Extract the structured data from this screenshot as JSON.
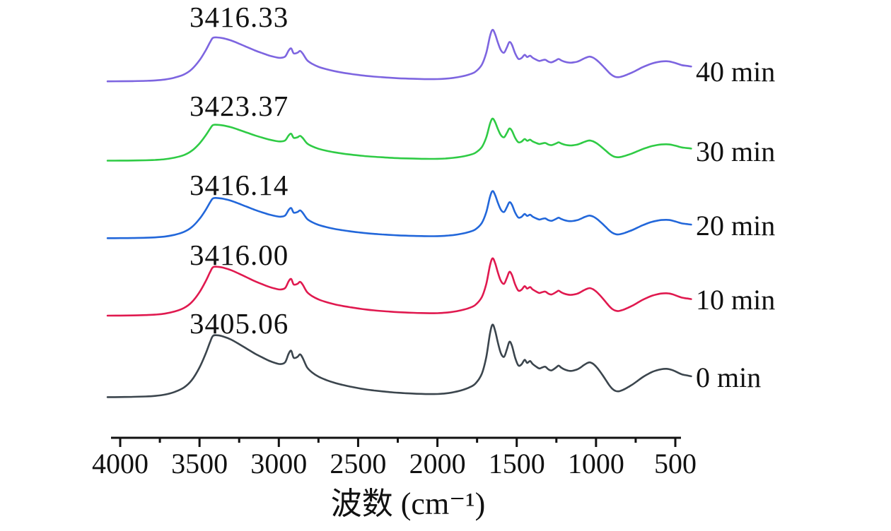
{
  "chart_data": {
    "type": "line",
    "title": "",
    "xlabel": "波数 (cm⁻¹)",
    "x_axis": {
      "label": "波数 (cm⁻¹)",
      "unit": "cm⁻¹",
      "min": 500,
      "max": 4000,
      "reversed": true,
      "major_ticks": [
        4000,
        3500,
        3000,
        2500,
        2000,
        1500,
        1000,
        500
      ],
      "minor_ticks": [
        3750,
        3250,
        2750,
        2250,
        1750,
        1250,
        750
      ]
    },
    "y_axis": {
      "label": "",
      "visible": false,
      "note": "absorbance (a.u.), curves vertically offset, no scale shown"
    },
    "legend_position": "right-of-curves",
    "grid": false,
    "series": [
      {
        "name": "40 min",
        "color": "#7d65e0",
        "peak_annotation": "3416.33",
        "peak_wavenumber": 3416.33,
        "relative_scale": 0.71
      },
      {
        "name": "30 min",
        "color": "#2fcb45",
        "peak_annotation": "3423.37",
        "peak_wavenumber": 3423.37,
        "relative_scale": 0.58
      },
      {
        "name": "20 min",
        "color": "#2267da",
        "peak_annotation": "3416.14",
        "peak_wavenumber": 3416.14,
        "relative_scale": 0.65
      },
      {
        "name": "10 min",
        "color": "#e0194f",
        "peak_annotation": "3416.00",
        "peak_wavenumber": 3416.0,
        "relative_scale": 0.79
      },
      {
        "name": "0 min",
        "color": "#3b454d",
        "peak_annotation": "3405.06",
        "peak_wavenumber": 3405.06,
        "relative_scale": 1.0
      }
    ],
    "profile_note": "shared normalized absorbance profile [wavenumber_cm-1, relative_absorbance]",
    "profile": [
      [
        4080,
        0.019
      ],
      [
        4000,
        0.02
      ],
      [
        3920,
        0.022
      ],
      [
        3840,
        0.026
      ],
      [
        3780,
        0.032
      ],
      [
        3720,
        0.045
      ],
      [
        3660,
        0.072
      ],
      [
        3600,
        0.118
      ],
      [
        3550,
        0.195
      ],
      [
        3500,
        0.33
      ],
      [
        3460,
        0.48
      ],
      [
        3435,
        0.59
      ],
      [
        3416,
        0.66
      ],
      [
        3390,
        0.668
      ],
      [
        3350,
        0.655
      ],
      [
        3300,
        0.622
      ],
      [
        3250,
        0.575
      ],
      [
        3200,
        0.525
      ],
      [
        3150,
        0.475
      ],
      [
        3100,
        0.432
      ],
      [
        3060,
        0.4
      ],
      [
        3020,
        0.376
      ],
      [
        2990,
        0.366
      ],
      [
        2960,
        0.386
      ],
      [
        2938,
        0.475
      ],
      [
        2922,
        0.505
      ],
      [
        2906,
        0.432
      ],
      [
        2882,
        0.442
      ],
      [
        2866,
        0.468
      ],
      [
        2850,
        0.432
      ],
      [
        2822,
        0.332
      ],
      [
        2790,
        0.278
      ],
      [
        2750,
        0.234
      ],
      [
        2700,
        0.198
      ],
      [
        2650,
        0.17
      ],
      [
        2600,
        0.148
      ],
      [
        2550,
        0.13
      ],
      [
        2500,
        0.114
      ],
      [
        2450,
        0.1
      ],
      [
        2400,
        0.089
      ],
      [
        2350,
        0.08
      ],
      [
        2300,
        0.072
      ],
      [
        2250,
        0.065
      ],
      [
        2200,
        0.06
      ],
      [
        2150,
        0.056
      ],
      [
        2100,
        0.053
      ],
      [
        2050,
        0.051
      ],
      [
        2000,
        0.052
      ],
      [
        1950,
        0.058
      ],
      [
        1900,
        0.07
      ],
      [
        1850,
        0.09
      ],
      [
        1800,
        0.12
      ],
      [
        1760,
        0.162
      ],
      [
        1720,
        0.265
      ],
      [
        1692,
        0.44
      ],
      [
        1668,
        0.69
      ],
      [
        1652,
        0.78
      ],
      [
        1636,
        0.715
      ],
      [
        1620,
        0.6
      ],
      [
        1600,
        0.48
      ],
      [
        1580,
        0.442
      ],
      [
        1562,
        0.52
      ],
      [
        1546,
        0.6
      ],
      [
        1530,
        0.558
      ],
      [
        1510,
        0.432
      ],
      [
        1490,
        0.352
      ],
      [
        1470,
        0.362
      ],
      [
        1450,
        0.41
      ],
      [
        1434,
        0.378
      ],
      [
        1416,
        0.398
      ],
      [
        1400,
        0.368
      ],
      [
        1380,
        0.342
      ],
      [
        1358,
        0.32
      ],
      [
        1340,
        0.33
      ],
      [
        1320,
        0.338
      ],
      [
        1300,
        0.31
      ],
      [
        1280,
        0.3
      ],
      [
        1252,
        0.33
      ],
      [
        1236,
        0.35
      ],
      [
        1220,
        0.33
      ],
      [
        1200,
        0.31
      ],
      [
        1178,
        0.298
      ],
      [
        1158,
        0.294
      ],
      [
        1138,
        0.3
      ],
      [
        1118,
        0.31
      ],
      [
        1098,
        0.33
      ],
      [
        1078,
        0.354
      ],
      [
        1058,
        0.374
      ],
      [
        1040,
        0.384
      ],
      [
        1020,
        0.37
      ],
      [
        1000,
        0.34
      ],
      [
        980,
        0.3
      ],
      [
        958,
        0.248
      ],
      [
        938,
        0.198
      ],
      [
        918,
        0.148
      ],
      [
        898,
        0.108
      ],
      [
        878,
        0.085
      ],
      [
        858,
        0.08
      ],
      [
        838,
        0.09
      ],
      [
        818,
        0.105
      ],
      [
        798,
        0.124
      ],
      [
        768,
        0.154
      ],
      [
        738,
        0.19
      ],
      [
        708,
        0.226
      ],
      [
        678,
        0.256
      ],
      [
        648,
        0.282
      ],
      [
        618,
        0.3
      ],
      [
        588,
        0.312
      ],
      [
        558,
        0.316
      ],
      [
        538,
        0.312
      ],
      [
        518,
        0.302
      ],
      [
        498,
        0.288
      ],
      [
        478,
        0.272
      ],
      [
        458,
        0.258
      ],
      [
        430,
        0.248
      ],
      [
        400,
        0.238
      ]
    ]
  }
}
